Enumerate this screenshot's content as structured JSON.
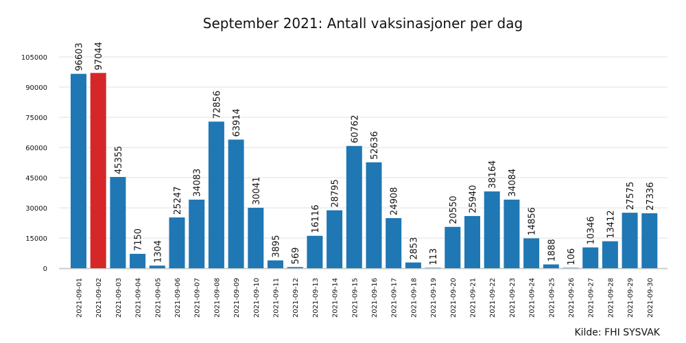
{
  "chart_data": {
    "type": "bar",
    "title": "September 2021: Antall vaksinasjoner per dag",
    "source": "Kilde: FHI SYSVAK",
    "categories": [
      "2021-09-01",
      "2021-09-02",
      "2021-09-03",
      "2021-09-04",
      "2021-09-05",
      "2021-09-06",
      "2021-09-07",
      "2021-09-08",
      "2021-09-09",
      "2021-09-10",
      "2021-09-11",
      "2021-09-12",
      "2021-09-13",
      "2021-09-14",
      "2021-09-15",
      "2021-09-16",
      "2021-09-17",
      "2021-09-18",
      "2021-09-19",
      "2021-09-20",
      "2021-09-21",
      "2021-09-22",
      "2021-09-23",
      "2021-09-24",
      "2021-09-25",
      "2021-09-26",
      "2021-09-27",
      "2021-09-28",
      "2021-09-29",
      "2021-09-30"
    ],
    "values": [
      96603,
      97044,
      45355,
      7150,
      1304,
      25247,
      34083,
      72856,
      63914,
      30041,
      3895,
      569,
      16116,
      28795,
      60762,
      52636,
      24908,
      2853,
      113,
      20550,
      25940,
      38164,
      34084,
      14856,
      1888,
      106,
      10346,
      13412,
      27575,
      27336
    ],
    "highlight_index": 1,
    "colors": {
      "bar": "#1f77b4",
      "highlight": "#d62728",
      "grid": "#e6e6e6",
      "axis": "#cccccc",
      "text": "#111111"
    },
    "yticks": [
      0,
      15000,
      30000,
      45000,
      60000,
      75000,
      90000,
      105000
    ],
    "ylim": [
      0,
      105000
    ],
    "grid": true,
    "xlabel": "",
    "ylabel": ""
  }
}
